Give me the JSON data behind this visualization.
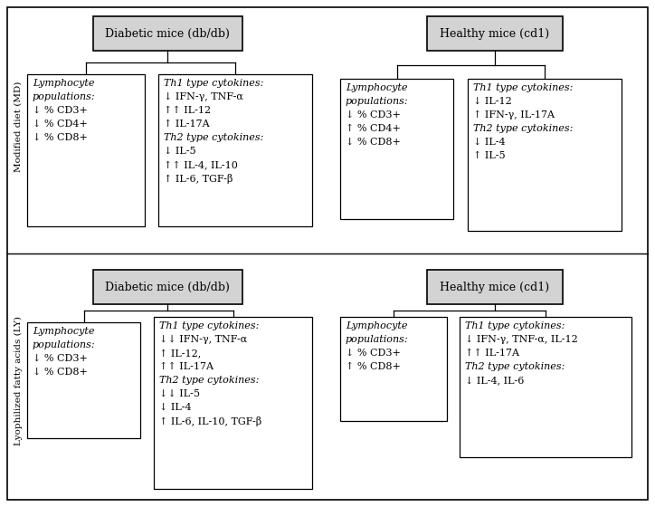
{
  "background_color": "#ffffff",
  "box_fill_top": "#d3d3d3",
  "box_fill_content": "#ffffff",
  "box_edge_color": "#000000",
  "content_boxes": {
    "MD_diabetic_lymph": "Lymphocyte\npopulations:\n↓ % CD3+\n↓ % CD4+\n↓ % CD8+",
    "MD_diabetic_cyto": "Th1 type cytokines:\n↓ IFN-γ, TNF-α\n↑↑ IL-12\n↑ IL-17A\nTh2 type cytokines:\n↓ IL-5\n↑↑ IL-4, IL-10\n↑ IL-6, TGF-β",
    "MD_healthy_lymph": "Lymphocyte\npopulations:\n↓ % CD3+\n↑ % CD4+\n↓ % CD8+",
    "MD_healthy_cyto": "Th1 type cytokines:\n↓ IL-12\n↑ IFN-γ, IL-17A\nTh2 type cytokines:\n↓ IL-4\n↑ IL-5",
    "LY_diabetic_lymph": "Lymphocyte\npopulations:\n↓ % CD3+\n↓ % CD8+",
    "LY_diabetic_cyto": "Th1 type cytokines:\n↓↓ IFN-γ, TNF-α\n↑ IL-12,\n↑↑ IL-17A\nTh2 type cytokines:\n↓↓ IL-5\n↓ IL-4\n↑ IL-6, IL-10, TGF-β",
    "LY_healthy_lymph": "Lymphocyte\npopulations:\n↓ % CD3+\n↑ % CD8+",
    "LY_healthy_cyto": "Th1 type cytokines:\n↓ IFN-γ, TNF-α, IL-12\n↑↑ IL-17A\nTh2 type cytokines:\n↓ IL-4, IL-6"
  },
  "italic_keywords": [
    "Th1 type cytokines:",
    "Th2 type cytokines:",
    "Lymphocyte",
    "populations:"
  ]
}
